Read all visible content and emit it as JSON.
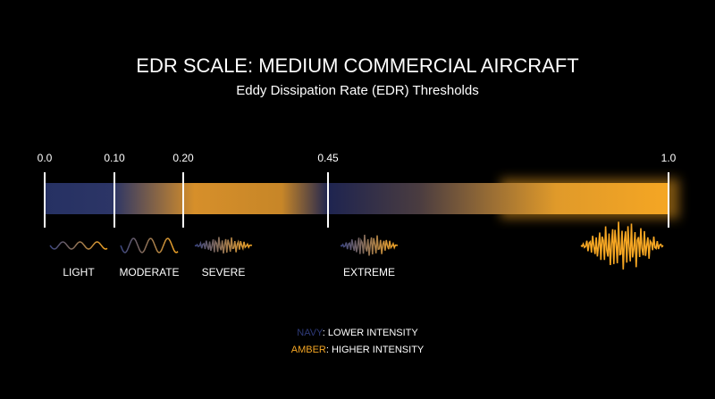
{
  "title": "EDR SCALE: MEDIUM COMMERCIAL AIRCRAFT",
  "subtitle": "Eddy Dissipation Rate (EDR) Thresholds",
  "scale": {
    "ticks": [
      {
        "value": 0,
        "label": "0.0"
      },
      {
        "value": 0.1,
        "label": "0.10"
      },
      {
        "value": 0.2,
        "label": "0.20"
      },
      {
        "value": 0.45,
        "label": "0.45"
      },
      {
        "value": 1,
        "label": "1.0"
      }
    ]
  },
  "categories": [
    "LIGHT",
    "MODERATE",
    "SEVERE",
    "EXTREME"
  ],
  "legend": [
    {
      "key": "NAVY",
      "text": ": LOWER INTENSITY",
      "color": "#2e3a78"
    },
    {
      "key": "AMBER",
      "text": ": HIGHER INTENSITY",
      "color": "#f5a623"
    }
  ]
}
